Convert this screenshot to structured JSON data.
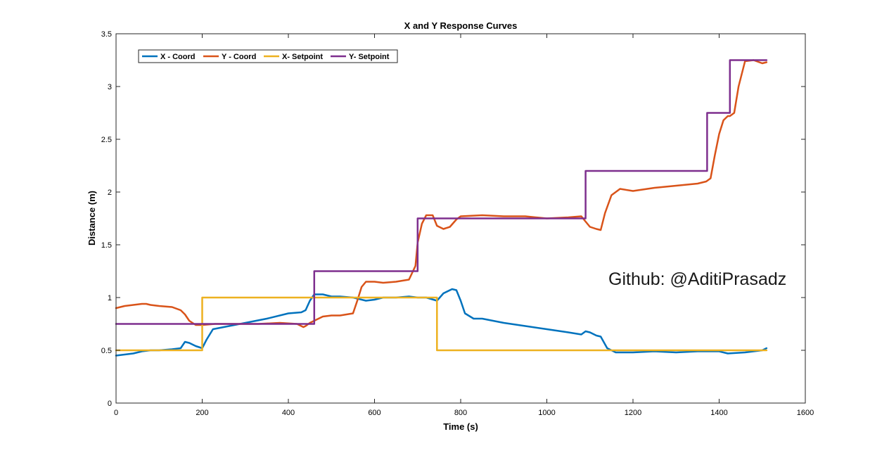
{
  "watermark": "Github: @AditiPrasadz",
  "chart_data": {
    "type": "line",
    "title": "X and Y Response Curves",
    "xlabel": "Time (s)",
    "ylabel": "Distance (m)",
    "xlim": [
      0,
      1600
    ],
    "ylim": [
      0,
      3.5
    ],
    "xticks": [
      0,
      200,
      400,
      600,
      800,
      1000,
      1200,
      1400,
      1600
    ],
    "yticks": [
      0,
      0.5,
      1,
      1.5,
      2,
      2.5,
      3,
      3.5
    ],
    "grid": false,
    "legend_position": "top-left",
    "series": [
      {
        "name": "X - Coord",
        "color": "#0072BD",
        "x": [
          0,
          20,
          40,
          60,
          80,
          100,
          130,
          150,
          160,
          170,
          185,
          200,
          210,
          225,
          250,
          300,
          350,
          400,
          430,
          440,
          450,
          460,
          480,
          500,
          520,
          550,
          580,
          600,
          620,
          650,
          680,
          700,
          720,
          745,
          760,
          780,
          790,
          800,
          810,
          830,
          850,
          900,
          950,
          1000,
          1050,
          1080,
          1090,
          1100,
          1115,
          1125,
          1140,
          1160,
          1200,
          1250,
          1300,
          1350,
          1400,
          1420,
          1460,
          1500,
          1510
        ],
        "y": [
          0.45,
          0.46,
          0.47,
          0.49,
          0.5,
          0.5,
          0.51,
          0.52,
          0.58,
          0.57,
          0.54,
          0.52,
          0.6,
          0.7,
          0.72,
          0.76,
          0.8,
          0.85,
          0.86,
          0.88,
          0.97,
          1.03,
          1.03,
          1.01,
          1.01,
          1.0,
          0.97,
          0.98,
          1.0,
          1.0,
          1.01,
          1.0,
          1.0,
          0.97,
          1.04,
          1.08,
          1.07,
          0.97,
          0.85,
          0.8,
          0.8,
          0.76,
          0.73,
          0.7,
          0.67,
          0.65,
          0.68,
          0.67,
          0.64,
          0.63,
          0.52,
          0.48,
          0.48,
          0.49,
          0.48,
          0.49,
          0.49,
          0.47,
          0.48,
          0.5,
          0.52
        ]
      },
      {
        "name": "Y - Coord",
        "color": "#D95319",
        "x": [
          0,
          20,
          40,
          60,
          70,
          80,
          100,
          130,
          150,
          160,
          170,
          185,
          200,
          230,
          280,
          330,
          380,
          420,
          435,
          440,
          450,
          470,
          480,
          500,
          520,
          550,
          560,
          570,
          580,
          600,
          620,
          650,
          680,
          695,
          700,
          710,
          720,
          735,
          745,
          760,
          775,
          790,
          800,
          850,
          900,
          950,
          1000,
          1050,
          1080,
          1090,
          1100,
          1115,
          1125,
          1135,
          1150,
          1170,
          1200,
          1250,
          1300,
          1350,
          1370,
          1380,
          1390,
          1400,
          1410,
          1420,
          1425,
          1435,
          1445,
          1460,
          1480,
          1500,
          1510
        ],
        "y": [
          0.9,
          0.92,
          0.93,
          0.94,
          0.94,
          0.93,
          0.92,
          0.91,
          0.88,
          0.84,
          0.78,
          0.74,
          0.74,
          0.75,
          0.75,
          0.75,
          0.76,
          0.75,
          0.72,
          0.73,
          0.76,
          0.8,
          0.82,
          0.83,
          0.83,
          0.85,
          0.97,
          1.1,
          1.15,
          1.15,
          1.14,
          1.15,
          1.17,
          1.3,
          1.52,
          1.7,
          1.78,
          1.78,
          1.68,
          1.65,
          1.67,
          1.74,
          1.77,
          1.78,
          1.77,
          1.77,
          1.75,
          1.76,
          1.77,
          1.72,
          1.67,
          1.65,
          1.64,
          1.8,
          1.97,
          2.03,
          2.01,
          2.04,
          2.06,
          2.08,
          2.1,
          2.13,
          2.35,
          2.55,
          2.68,
          2.72,
          2.72,
          2.75,
          3.0,
          3.24,
          3.25,
          3.22,
          3.23
        ]
      },
      {
        "name": "X- Setpoint",
        "color": "#EDB120",
        "x": [
          0,
          200,
          200,
          745,
          745,
          1510
        ],
        "y": [
          0.5,
          0.5,
          1.0,
          1.0,
          0.5,
          0.5
        ]
      },
      {
        "name": "Y- Setpoint",
        "color": "#7E2F8E",
        "x": [
          0,
          460,
          460,
          700,
          700,
          1090,
          1090,
          1372,
          1372,
          1425,
          1425,
          1510
        ],
        "y": [
          0.75,
          0.75,
          1.25,
          1.25,
          1.75,
          1.75,
          2.2,
          2.2,
          2.75,
          2.75,
          3.25,
          3.25
        ]
      }
    ]
  }
}
